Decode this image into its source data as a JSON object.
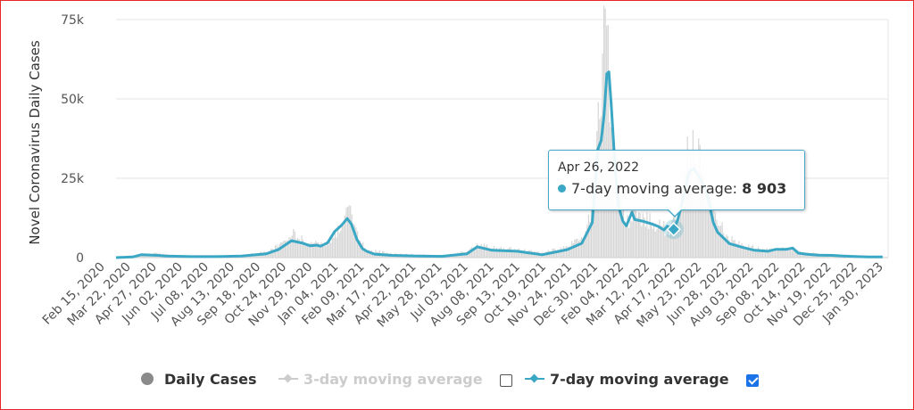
{
  "chart_data": {
    "type": "line",
    "ylabel": "Novel Coronavirus Daily Cases",
    "ylim": [
      0,
      75000
    ],
    "yticks": [
      {
        "value": 0,
        "label": "0"
      },
      {
        "value": 25000,
        "label": "25k"
      },
      {
        "value": 50000,
        "label": "50k"
      },
      {
        "value": 75000,
        "label": "75k"
      }
    ],
    "x_tick_labels": [
      "Feb 15, 2020",
      "Mar 22, 2020",
      "Apr 27, 2020",
      "Jun 02, 2020",
      "Jul 08, 2020",
      "Aug 13, 2020",
      "Sep 18, 2020",
      "Oct 24, 2020",
      "Nov 29, 2020",
      "Jan 04, 2021",
      "Feb 09, 2021",
      "Mar 17, 2021",
      "Apr 22, 2021",
      "May 28, 2021",
      "Jul 03, 2021",
      "Aug 08, 2021",
      "Sep 13, 2021",
      "Oct 19, 2021",
      "Nov 24, 2021",
      "Dec 30, 2021",
      "Feb 04, 2022",
      "Mar 12, 2022",
      "Apr 17, 2022",
      "May 23, 2022",
      "Jun 28, 2022",
      "Aug 03, 2022",
      "Sep 08, 2022",
      "Oct 14, 2022",
      "Nov 19, 2022",
      "Dec 25, 2022",
      "Jan 30, 2023"
    ],
    "grid": true,
    "legend_position": "bottom",
    "series": [
      {
        "name": "Daily Cases",
        "render": "bars",
        "color": "#d6d6d6",
        "visible": true,
        "points": [
          [
            "2020-02-15",
            0
          ],
          [
            "2020-03-10",
            300
          ],
          [
            "2020-03-22",
            1100
          ],
          [
            "2020-04-10",
            1500
          ],
          [
            "2020-04-27",
            900
          ],
          [
            "2020-06-02",
            400
          ],
          [
            "2020-07-08",
            500
          ],
          [
            "2020-08-13",
            700
          ],
          [
            "2020-09-18",
            1800
          ],
          [
            "2020-10-10",
            4500
          ],
          [
            "2020-10-24",
            7500
          ],
          [
            "2020-11-05",
            6000
          ],
          [
            "2020-11-15",
            4000
          ],
          [
            "2020-11-29",
            5500
          ],
          [
            "2020-12-15",
            4000
          ],
          [
            "2021-01-04",
            10500
          ],
          [
            "2021-01-15",
            15500
          ],
          [
            "2021-01-20",
            13000
          ],
          [
            "2021-01-28",
            6500
          ],
          [
            "2021-02-09",
            2500
          ],
          [
            "2021-03-17",
            1200
          ],
          [
            "2021-04-22",
            900
          ],
          [
            "2021-05-28",
            700
          ],
          [
            "2021-07-03",
            1800
          ],
          [
            "2021-07-18",
            4000
          ],
          [
            "2021-08-08",
            3000
          ],
          [
            "2021-09-13",
            2500
          ],
          [
            "2021-10-19",
            1500
          ],
          [
            "2021-11-24",
            3500
          ],
          [
            "2021-12-20",
            7000
          ],
          [
            "2021-12-30",
            20000
          ],
          [
            "2022-01-05",
            39000
          ],
          [
            "2022-01-12",
            62000
          ],
          [
            "2022-01-18",
            70000
          ],
          [
            "2022-01-25",
            50000
          ],
          [
            "2022-02-04",
            22000
          ],
          [
            "2022-02-15",
            10000
          ],
          [
            "2022-03-01",
            15000
          ],
          [
            "2022-03-12",
            12000
          ],
          [
            "2022-04-01",
            10500
          ],
          [
            "2022-04-17",
            8500
          ],
          [
            "2022-05-01",
            12000
          ],
          [
            "2022-05-15",
            31000
          ],
          [
            "2022-05-23",
            38000
          ],
          [
            "2022-06-10",
            24000
          ],
          [
            "2022-06-28",
            11000
          ],
          [
            "2022-07-15",
            6000
          ],
          [
            "2022-08-03",
            3500
          ],
          [
            "2022-09-08",
            2500
          ],
          [
            "2022-10-14",
            2800
          ],
          [
            "2022-10-25",
            1500
          ],
          [
            "2022-11-19",
            1200
          ],
          [
            "2022-12-25",
            700
          ],
          [
            "2023-01-30",
            500
          ],
          [
            "2023-02-20",
            400
          ]
        ]
      },
      {
        "name": "3-day moving average",
        "render": "line",
        "color": "#cfcfcf",
        "visible": false,
        "points": []
      },
      {
        "name": "7-day moving average",
        "render": "line",
        "color": "#3aa7c5",
        "visible": true,
        "points": [
          [
            "2020-02-15",
            0
          ],
          [
            "2020-03-10",
            200
          ],
          [
            "2020-03-22",
            900
          ],
          [
            "2020-04-15",
            700
          ],
          [
            "2020-04-27",
            500
          ],
          [
            "2020-06-02",
            300
          ],
          [
            "2020-07-08",
            300
          ],
          [
            "2020-08-13",
            500
          ],
          [
            "2020-09-18",
            1200
          ],
          [
            "2020-10-05",
            2500
          ],
          [
            "2020-10-24",
            5300
          ],
          [
            "2020-11-08",
            4600
          ],
          [
            "2020-11-20",
            3700
          ],
          [
            "2020-11-29",
            3900
          ],
          [
            "2020-12-05",
            3600
          ],
          [
            "2020-12-15",
            4700
          ],
          [
            "2020-12-25",
            8200
          ],
          [
            "2021-01-04",
            10200
          ],
          [
            "2021-01-12",
            12300
          ],
          [
            "2021-01-18",
            10600
          ],
          [
            "2021-01-26",
            5700
          ],
          [
            "2021-02-03",
            2800
          ],
          [
            "2021-02-09",
            2000
          ],
          [
            "2021-02-20",
            1100
          ],
          [
            "2021-03-17",
            700
          ],
          [
            "2021-04-22",
            500
          ],
          [
            "2021-05-28",
            400
          ],
          [
            "2021-07-03",
            1200
          ],
          [
            "2021-07-18",
            3400
          ],
          [
            "2021-08-08",
            2300
          ],
          [
            "2021-09-13",
            2000
          ],
          [
            "2021-10-19",
            900
          ],
          [
            "2021-11-24",
            2500
          ],
          [
            "2021-12-15",
            4500
          ],
          [
            "2021-12-30",
            11000
          ],
          [
            "2022-01-04",
            25000
          ],
          [
            "2022-01-07",
            34000
          ],
          [
            "2022-01-12",
            37000
          ],
          [
            "2022-01-16",
            45000
          ],
          [
            "2022-01-20",
            58000
          ],
          [
            "2022-01-23",
            58500
          ],
          [
            "2022-01-27",
            46000
          ],
          [
            "2022-02-01",
            28000
          ],
          [
            "2022-02-06",
            16000
          ],
          [
            "2022-02-12",
            11500
          ],
          [
            "2022-02-17",
            10000
          ],
          [
            "2022-02-25",
            14300
          ],
          [
            "2022-03-01",
            12000
          ],
          [
            "2022-03-12",
            11500
          ],
          [
            "2022-03-26",
            10600
          ],
          [
            "2022-04-04",
            9800
          ],
          [
            "2022-04-12",
            8700
          ],
          [
            "2022-04-17",
            9900
          ],
          [
            "2022-04-26",
            8903
          ],
          [
            "2022-05-02",
            12000
          ],
          [
            "2022-05-10",
            19000
          ],
          [
            "2022-05-18",
            27000
          ],
          [
            "2022-05-25",
            28000
          ],
          [
            "2022-06-03",
            25000
          ],
          [
            "2022-06-12",
            21000
          ],
          [
            "2022-06-22",
            11000
          ],
          [
            "2022-06-28",
            8000
          ],
          [
            "2022-07-15",
            4400
          ],
          [
            "2022-08-03",
            3200
          ],
          [
            "2022-08-20",
            2300
          ],
          [
            "2022-09-08",
            2000
          ],
          [
            "2022-09-20",
            2600
          ],
          [
            "2022-10-05",
            2600
          ],
          [
            "2022-10-14",
            3000
          ],
          [
            "2022-10-22",
            1400
          ],
          [
            "2022-11-05",
            1000
          ],
          [
            "2022-11-19",
            800
          ],
          [
            "2022-12-10",
            700
          ],
          [
            "2022-12-25",
            500
          ],
          [
            "2023-01-15",
            300
          ],
          [
            "2023-01-30",
            200
          ],
          [
            "2023-02-20",
            200
          ]
        ]
      }
    ]
  },
  "tooltip": {
    "date": "Apr 26, 2022",
    "series_name": "7-day moving average:",
    "value": "8 903",
    "x": "2022-04-26",
    "y": 8903
  },
  "legend": {
    "daily_cases": "Daily Cases",
    "ma3": "3-day moving average",
    "ma7": "7-day moving average",
    "ma3_checked": false,
    "ma7_checked": true
  },
  "colors": {
    "accent": "#3aa7c5",
    "bars": "#d6d6d6",
    "grid": "#e6e6e6",
    "frame": "#e8262a"
  }
}
